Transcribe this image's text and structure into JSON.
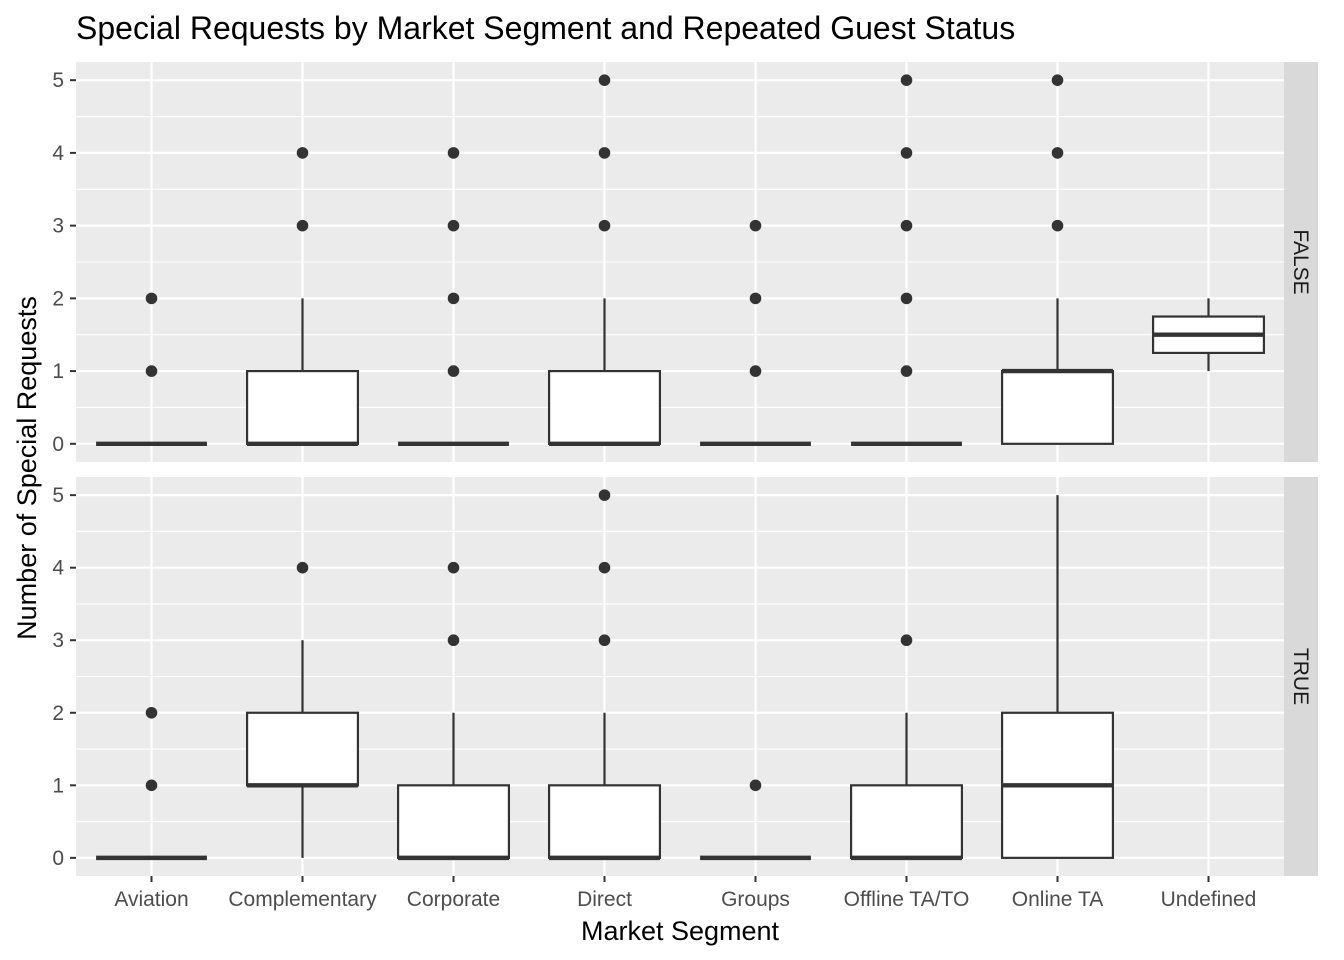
{
  "chart_data": {
    "type": "boxplot",
    "title": "Special Requests by Market Segment and Repeated Guest Status",
    "xlabel": "Market Segment",
    "ylabel": "Number of Special Requests",
    "categories": [
      "Aviation",
      "Complementary",
      "Corporate",
      "Direct",
      "Groups",
      "Offline TA/TO",
      "Online TA",
      "Undefined"
    ],
    "yticks": [
      0,
      1,
      2,
      3,
      4,
      5
    ],
    "ylim": [
      -0.25,
      5.25
    ],
    "grid": true,
    "facets": [
      {
        "label": "FALSE",
        "boxes": [
          {
            "category": "Aviation",
            "q1": 0,
            "median": 0,
            "q3": 0,
            "whisker_low": 0,
            "whisker_high": 0,
            "outliers": [
              1,
              2
            ]
          },
          {
            "category": "Complementary",
            "q1": 0,
            "median": 0,
            "q3": 1,
            "whisker_low": 0,
            "whisker_high": 2,
            "outliers": [
              3,
              4
            ]
          },
          {
            "category": "Corporate",
            "q1": 0,
            "median": 0,
            "q3": 0,
            "whisker_low": 0,
            "whisker_high": 0,
            "outliers": [
              1,
              2,
              3,
              4
            ]
          },
          {
            "category": "Direct",
            "q1": 0,
            "median": 0,
            "q3": 1,
            "whisker_low": 0,
            "whisker_high": 2,
            "outliers": [
              3,
              4,
              5
            ]
          },
          {
            "category": "Groups",
            "q1": 0,
            "median": 0,
            "q3": 0,
            "whisker_low": 0,
            "whisker_high": 0,
            "outliers": [
              1,
              2,
              3
            ]
          },
          {
            "category": "Offline TA/TO",
            "q1": 0,
            "median": 0,
            "q3": 0,
            "whisker_low": 0,
            "whisker_high": 0,
            "outliers": [
              1,
              2,
              3,
              4,
              5
            ]
          },
          {
            "category": "Online TA",
            "q1": 0,
            "median": 1,
            "q3": 1,
            "whisker_low": 0,
            "whisker_high": 2,
            "outliers": [
              3,
              4,
              5
            ]
          },
          {
            "category": "Undefined",
            "q1": 1.25,
            "median": 1.5,
            "q3": 1.75,
            "whisker_low": 1,
            "whisker_high": 2,
            "outliers": []
          }
        ]
      },
      {
        "label": "TRUE",
        "boxes": [
          {
            "category": "Aviation",
            "q1": 0,
            "median": 0,
            "q3": 0,
            "whisker_low": 0,
            "whisker_high": 0,
            "outliers": [
              1,
              2
            ]
          },
          {
            "category": "Complementary",
            "q1": 1,
            "median": 1,
            "q3": 2,
            "whisker_low": 0,
            "whisker_high": 3,
            "outliers": [
              4
            ]
          },
          {
            "category": "Corporate",
            "q1": 0,
            "median": 0,
            "q3": 1,
            "whisker_low": 0,
            "whisker_high": 2,
            "outliers": [
              3,
              4
            ]
          },
          {
            "category": "Direct",
            "q1": 0,
            "median": 0,
            "q3": 1,
            "whisker_low": 0,
            "whisker_high": 2,
            "outliers": [
              3,
              4,
              5
            ]
          },
          {
            "category": "Groups",
            "q1": 0,
            "median": 0,
            "q3": 0,
            "whisker_low": 0,
            "whisker_high": 0,
            "outliers": [
              1
            ]
          },
          {
            "category": "Offline TA/TO",
            "q1": 0,
            "median": 0,
            "q3": 1,
            "whisker_low": 0,
            "whisker_high": 2,
            "outliers": [
              3
            ]
          },
          {
            "category": "Online TA",
            "q1": 0,
            "median": 1,
            "q3": 2,
            "whisker_low": 0,
            "whisker_high": 5,
            "outliers": []
          }
        ]
      }
    ],
    "colors": {
      "panel_background": "#ebebeb",
      "grid": "#ffffff",
      "strip_background": "#d9d9d9",
      "box_fill": "#ffffff",
      "box_stroke": "#333333",
      "outlier": "#333333"
    }
  }
}
